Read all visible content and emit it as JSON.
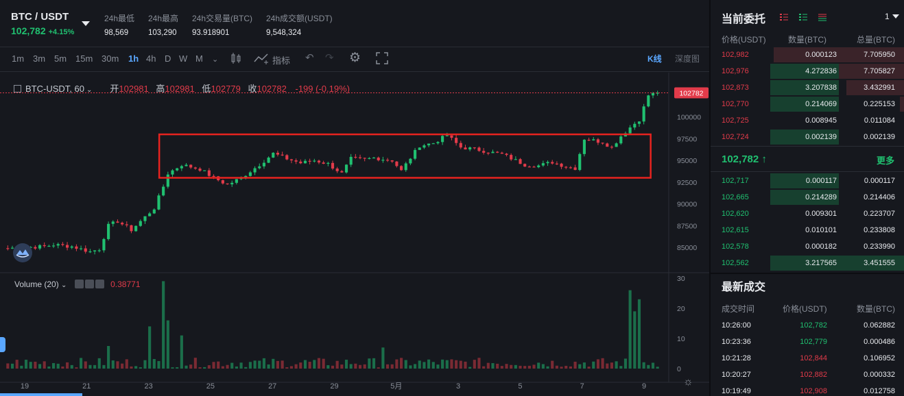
{
  "header": {
    "pair": "BTC / USDT",
    "last_price": "102,782",
    "change_pct": "+4.15%",
    "stats": [
      {
        "label": "24h最低",
        "value": "98,569"
      },
      {
        "label": "24h最高",
        "value": "103,290"
      },
      {
        "label": "24h交易量(BTC)",
        "value": "93.918901"
      },
      {
        "label": "24h成交额(USDT)",
        "value": "9,548,324"
      }
    ]
  },
  "toolbar": {
    "timeframes": [
      "1m",
      "3m",
      "5m",
      "15m",
      "30m",
      "1h",
      "4h",
      "D",
      "W",
      "M"
    ],
    "active_timeframe": "1h",
    "indicator_label": "指标",
    "view_kline": "K线",
    "view_depth": "深度图"
  },
  "chart_legend": {
    "symbol": "BTC-USDT, 60",
    "open_label": "开",
    "open": "102981",
    "high_label": "高",
    "high": "102981",
    "low_label": "低",
    "low": "102779",
    "close_label": "收",
    "close": "102782",
    "change": "-199 (-0.19%)"
  },
  "volume_legend": {
    "label": "Volume (20)",
    "value": "0.38771"
  },
  "chart_data": {
    "type": "candlestick",
    "x_ticks": [
      "19",
      "21",
      "23",
      "25",
      "27",
      "29",
      "5月",
      "3",
      "5",
      "7",
      "9"
    ],
    "price_ticks": [
      "100000",
      "97500",
      "95000",
      "92500",
      "90000",
      "87500",
      "85000"
    ],
    "volume_ticks": [
      "30",
      "20",
      "10",
      "0"
    ],
    "last_price_tag": "102782",
    "price_range": [
      83500,
      104000
    ],
    "close_path": [
      [
        0,
        84900
      ],
      [
        8,
        85100
      ],
      [
        10,
        85300
      ],
      [
        14,
        85100
      ],
      [
        18,
        84500
      ],
      [
        20,
        84800
      ],
      [
        22,
        87500
      ],
      [
        24,
        88000
      ],
      [
        27,
        87000
      ],
      [
        30,
        88500
      ],
      [
        32,
        89500
      ],
      [
        34,
        92000
      ],
      [
        35,
        93500
      ],
      [
        38,
        94500
      ],
      [
        42,
        94000
      ],
      [
        45,
        93000
      ],
      [
        48,
        92200
      ],
      [
        51,
        93000
      ],
      [
        55,
        94500
      ],
      [
        58,
        95800
      ],
      [
        61,
        95200
      ],
      [
        64,
        94700
      ],
      [
        67,
        95000
      ],
      [
        70,
        94600
      ],
      [
        73,
        93500
      ],
      [
        75,
        95200
      ],
      [
        78,
        95100
      ],
      [
        80,
        95300
      ],
      [
        84,
        95000
      ],
      [
        86,
        93800
      ],
      [
        88,
        95300
      ],
      [
        90,
        96700
      ],
      [
        93,
        97000
      ],
      [
        96,
        97900
      ],
      [
        99,
        96500
      ],
      [
        102,
        96300
      ],
      [
        105,
        96000
      ],
      [
        108,
        95700
      ],
      [
        111,
        95000
      ],
      [
        113,
        94500
      ],
      [
        116,
        94400
      ],
      [
        119,
        94800
      ],
      [
        122,
        94300
      ],
      [
        124,
        94100
      ],
      [
        126,
        97500
      ],
      [
        128,
        97300
      ],
      [
        130,
        97100
      ],
      [
        132,
        96500
      ],
      [
        134,
        97800
      ],
      [
        136,
        98800
      ],
      [
        138,
        99700
      ],
      [
        140,
        102500
      ],
      [
        142,
        102782
      ]
    ],
    "highlight_box": {
      "from_index": 34,
      "to_index": 139,
      "price_low": 93000,
      "price_high": 98000
    },
    "volume_spikes": [
      [
        22,
        7.5
      ],
      [
        31,
        14
      ],
      [
        34,
        29
      ],
      [
        35,
        16
      ],
      [
        38,
        11
      ],
      [
        82,
        7
      ],
      [
        136,
        26
      ],
      [
        137,
        19
      ],
      [
        138,
        23
      ]
    ]
  },
  "orderbook": {
    "title": "当前委托",
    "depth_select": "1",
    "headers": [
      "价格(USDT)",
      "数量(BTC)",
      "总量(BTC)"
    ],
    "asks": [
      {
        "price": "102,982",
        "amount": "0.000123",
        "total": "7.705950",
        "depth": 1.0
      },
      {
        "price": "102,976",
        "amount": "4.272836",
        "total": "7.705827",
        "depth": 1.0
      },
      {
        "price": "102,873",
        "amount": "3.207838",
        "total": "3.432991",
        "depth": 0.44
      },
      {
        "price": "102,770",
        "amount": "0.214069",
        "total": "0.225153",
        "depth": 0.03
      },
      {
        "price": "102,725",
        "amount": "0.008945",
        "total": "0.011084",
        "depth": 0.0
      },
      {
        "price": "102,724",
        "amount": "0.002139",
        "total": "0.002139",
        "depth": 0.0
      }
    ],
    "mid_price": "102,782 ↑",
    "more_label": "更多",
    "bids": [
      {
        "price": "102,717",
        "amount": "0.000117",
        "total": "0.000117"
      },
      {
        "price": "102,665",
        "amount": "0.214289",
        "total": "0.214406"
      },
      {
        "price": "102,620",
        "amount": "0.009301",
        "total": "0.223707"
      },
      {
        "price": "102,615",
        "amount": "0.010101",
        "total": "0.233808"
      },
      {
        "price": "102,578",
        "amount": "0.000182",
        "total": "0.233990"
      },
      {
        "price": "102,562",
        "amount": "3.217565",
        "total": "3.451555"
      }
    ]
  },
  "trades": {
    "title": "最新成交",
    "headers": [
      "成交时间",
      "价格(USDT)",
      "数量(BTC)"
    ],
    "rows": [
      {
        "time": "10:26:00",
        "price": "102,782",
        "qty": "0.062882",
        "side": "buy"
      },
      {
        "time": "10:23:36",
        "price": "102,779",
        "qty": "0.000486",
        "side": "buy"
      },
      {
        "time": "10:21:28",
        "price": "102,844",
        "qty": "0.106952",
        "side": "sell"
      },
      {
        "time": "10:20:27",
        "price": "102,882",
        "qty": "0.000332",
        "side": "sell"
      },
      {
        "time": "10:19:49",
        "price": "102,908",
        "qty": "0.012758",
        "side": "sell"
      }
    ]
  },
  "colors": {
    "up": "#20c070",
    "down": "#e23b4a",
    "accent": "#5aa7ff",
    "box": "#e8231f"
  }
}
